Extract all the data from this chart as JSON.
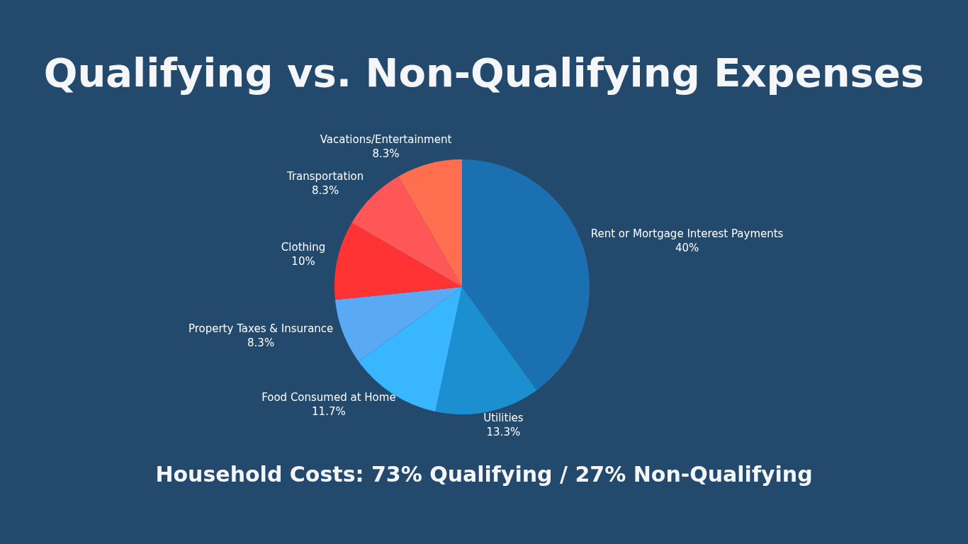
{
  "chart_data": {
    "type": "pie",
    "title": "Qualifying vs. Non-Qualifying Expenses",
    "categories": [
      "Rent or Mortgage Interest Payments",
      "Utilities",
      "Food Consumed at Home",
      "Property Taxes & Insurance",
      "Clothing",
      "Transportation",
      "Vacations/Entertainment"
    ],
    "values": [
      40,
      13.3,
      11.7,
      8.3,
      10,
      8.3,
      8.3
    ],
    "value_labels": [
      "40%",
      "13.3%",
      "11.7%",
      "8.3%",
      "10%",
      "8.3%",
      "8.3%"
    ],
    "colors": [
      "#1a70b0",
      "#1b8fd0",
      "#38b6ff",
      "#5aa9f5",
      "#ff3333",
      "#ff5757",
      "#ff6f4f"
    ],
    "legend": false,
    "annotations": [
      "Household Costs: 73% Qualifying / 27% Non-Qualifying"
    ]
  }
}
